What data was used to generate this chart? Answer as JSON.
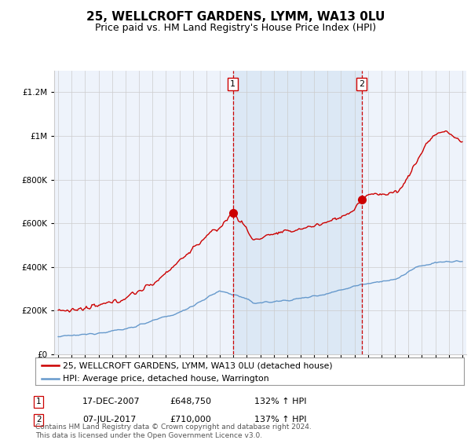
{
  "title": "25, WELLCROFT GARDENS, LYMM, WA13 0LU",
  "subtitle": "Price paid vs. HM Land Registry's House Price Index (HPI)",
  "legend_label_red": "25, WELLCROFT GARDENS, LYMM, WA13 0LU (detached house)",
  "legend_label_blue": "HPI: Average price, detached house, Warrington",
  "footnote": "Contains HM Land Registry data © Crown copyright and database right 2024.\nThis data is licensed under the Open Government Licence v3.0.",
  "annotation1_date": "17-DEC-2007",
  "annotation1_price": "£648,750",
  "annotation1_hpi": "132% ↑ HPI",
  "annotation2_date": "07-JUL-2017",
  "annotation2_price": "£710,000",
  "annotation2_hpi": "137% ↑ HPI",
  "vline1_year": 2007.96,
  "vline2_year": 2017.52,
  "dot1_year": 2007.96,
  "dot1_val": 648750,
  "dot2_year": 2017.52,
  "dot2_val": 710000,
  "ylim": [
    0,
    1300000
  ],
  "xlim_start": 1994.7,
  "xlim_end": 2025.3,
  "background_color": "#ffffff",
  "plot_bg_color": "#eef3fb",
  "red_color": "#cc0000",
  "blue_color": "#6699cc",
  "grid_color": "#cccccc",
  "vline_color": "#cc0000",
  "shade_color": "#dce8f5",
  "title_fontsize": 11,
  "subtitle_fontsize": 9,
  "legend_fontsize": 7.8,
  "footnote_fontsize": 6.5
}
